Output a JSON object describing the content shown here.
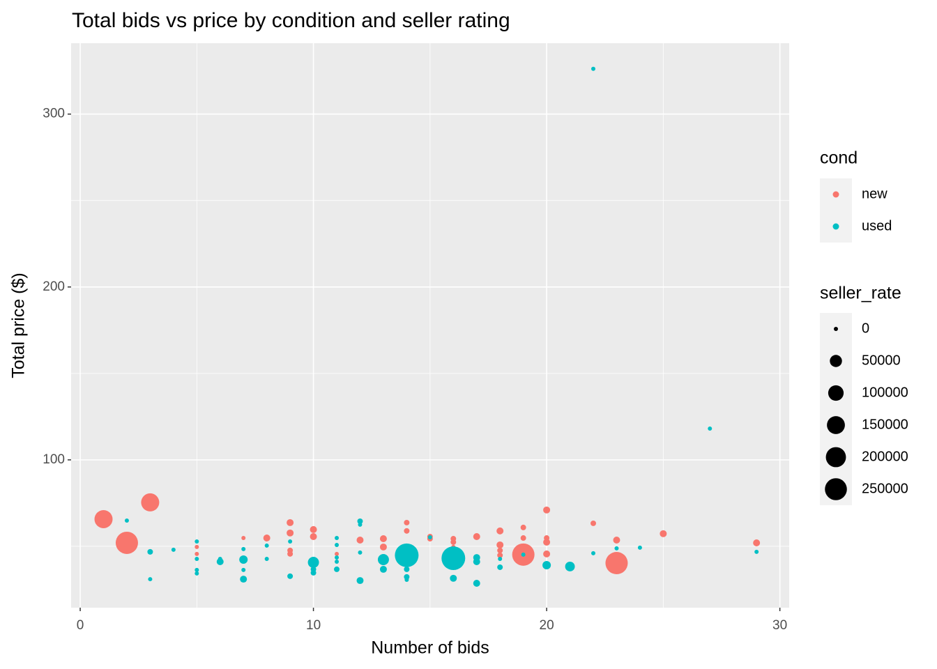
{
  "chart_data": {
    "type": "scatter",
    "title": "Total bids vs price by condition and seller rating",
    "x_label": "Number of bids",
    "y_label": "Total price ($)",
    "xlim": [
      -0.39,
      30.4
    ],
    "ylim": [
      14.5,
      341
    ],
    "xticks": [
      0,
      10,
      20,
      30
    ],
    "yticks": [
      100,
      200,
      300
    ],
    "xminor": [
      5,
      15,
      25
    ],
    "yminor": [
      50,
      150,
      250
    ],
    "grid": true,
    "color_legend_title": "cond",
    "size_legend": {
      "title": "seller_rate",
      "values": [
        0,
        50000,
        100000,
        150000,
        200000,
        250000
      ]
    },
    "size_lim": [
      0,
      300000
    ],
    "series": [
      {
        "name": "new",
        "color": "#F8766D",
        "x": [
          1,
          2,
          3,
          5,
          5,
          7,
          8,
          9,
          9,
          9,
          9,
          10,
          10,
          11,
          12,
          13,
          13,
          14,
          14,
          14,
          15,
          15,
          16,
          16,
          16,
          17,
          18,
          18,
          18,
          18,
          19,
          19,
          19,
          20,
          20,
          20,
          20,
          22,
          23,
          23,
          25,
          29
        ],
        "values": [
          65.7,
          52.0,
          75.4,
          49.6,
          45.6,
          54.8,
          54.8,
          63.7,
          57.7,
          47.6,
          45.6,
          59.7,
          55.6,
          45.6,
          53.6,
          54.4,
          49.6,
          63.7,
          58.9,
          47.6,
          55.6,
          54.4,
          54.4,
          52.4,
          49.6,
          55.6,
          58.9,
          50.8,
          47.6,
          44.8,
          60.9,
          54.8,
          45.2,
          71.0,
          54.8,
          52.4,
          45.6,
          63.3,
          53.6,
          40.3,
          57.3,
          52.0
        ],
        "sizes": [
          153000,
          259000,
          153000,
          0,
          0,
          0,
          6000,
          6000,
          6000,
          1500,
          1500,
          6000,
          6000,
          0,
          6000,
          6000,
          6000,
          1500,
          1500,
          0,
          1500,
          1500,
          1500,
          1500,
          0,
          6000,
          6000,
          6000,
          1500,
          1500,
          1500,
          1500,
          259000,
          6000,
          1500,
          6000,
          6000,
          1500,
          6000,
          259000,
          6000,
          6000
        ]
      },
      {
        "name": "used",
        "color": "#00BFC4",
        "x": [
          2,
          3,
          3,
          4,
          5,
          5,
          5,
          5,
          6,
          6,
          7,
          7,
          7,
          7,
          8,
          8,
          9,
          9,
          10,
          10,
          10,
          11,
          11,
          11,
          11,
          11,
          12,
          12,
          12,
          12,
          13,
          13,
          14,
          14,
          14,
          14,
          15,
          16,
          16,
          17,
          17,
          17,
          18,
          18,
          19,
          20,
          21,
          22,
          22,
          23,
          24,
          27,
          29
        ],
        "values": [
          64.9,
          46.8,
          31.0,
          48.0,
          52.8,
          42.7,
          36.3,
          34.3,
          42.7,
          41.1,
          48.4,
          42.3,
          36.3,
          31.0,
          50.4,
          42.7,
          52.8,
          32.7,
          40.7,
          36.7,
          34.7,
          54.8,
          50.8,
          43.5,
          41.1,
          36.7,
          64.5,
          62.5,
          46.4,
          30.2,
          42.3,
          36.7,
          44.8,
          36.7,
          32.3,
          30.6,
          55.2,
          43.1,
          31.5,
          43.5,
          41.1,
          28.6,
          42.7,
          37.9,
          45.2,
          39.1,
          38.3,
          326.2,
          46.0,
          48.8,
          49.2,
          118.1,
          46.8
        ],
        "sizes": [
          0,
          1500,
          0,
          0,
          0,
          0,
          0,
          0,
          0,
          6000,
          0,
          14000,
          0,
          6000,
          0,
          0,
          0,
          1500,
          38000,
          1500,
          1500,
          0,
          0,
          0,
          0,
          1500,
          1500,
          0,
          0,
          6000,
          38000,
          6000,
          300000,
          1500,
          1500,
          0,
          0,
          300000,
          6000,
          6000,
          6000,
          6000,
          0,
          1500,
          0,
          14000,
          24000,
          0,
          0,
          0,
          0,
          0,
          0
        ]
      }
    ]
  }
}
